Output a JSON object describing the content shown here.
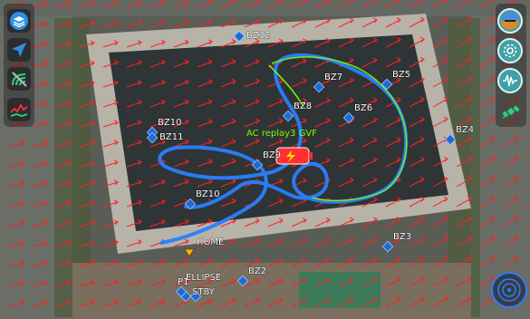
{
  "view": "AC replay map",
  "track_label": "AC replay3 GVF",
  "waypoints": [
    {
      "id": "bz12",
      "label": "BZ12"
    },
    {
      "id": "bz7",
      "label": "BZ7"
    },
    {
      "id": "bz5",
      "label": "BZ5"
    },
    {
      "id": "bz8",
      "label": "BZ8"
    },
    {
      "id": "bz6",
      "label": "BZ6"
    },
    {
      "id": "bz10a",
      "label": "BZ10"
    },
    {
      "id": "bz11",
      "label": "BZ11"
    },
    {
      "id": "bz4",
      "label": "BZ4"
    },
    {
      "id": "bz9",
      "label": "BZ9"
    },
    {
      "id": "bz10b",
      "label": "BZ10"
    },
    {
      "id": "home",
      "label": "HOME"
    },
    {
      "id": "bz3",
      "label": "BZ3"
    },
    {
      "id": "bz2",
      "label": "BZ2"
    },
    {
      "id": "ellipse",
      "label": "ELLIPSE"
    },
    {
      "id": "p1",
      "label": "P1"
    },
    {
      "id": "stby",
      "label": "STBY"
    }
  ],
  "left_toolbar": [
    {
      "name": "layers-icon",
      "label": "Layers"
    },
    {
      "name": "navigation-arrow-icon",
      "label": "Navigate"
    },
    {
      "name": "link-signal-icon",
      "label": "Link"
    },
    {
      "name": "telemetry-icon",
      "label": "Telemetry"
    }
  ],
  "right_toolbar": [
    {
      "name": "attitude-icon",
      "label": "Attitude"
    },
    {
      "name": "settings-icon",
      "label": "Settings"
    },
    {
      "name": "waveform-icon",
      "label": "Waveform"
    },
    {
      "name": "satellite-icon",
      "label": "GPS"
    }
  ],
  "colors": {
    "wind_arrow": "#ff2020",
    "waypoint": "#1f6bd6",
    "track": "#2a7fff",
    "track_highlight": "#7CFC00",
    "aircraft": "#ff3030",
    "home_marker": "#ffb000"
  }
}
